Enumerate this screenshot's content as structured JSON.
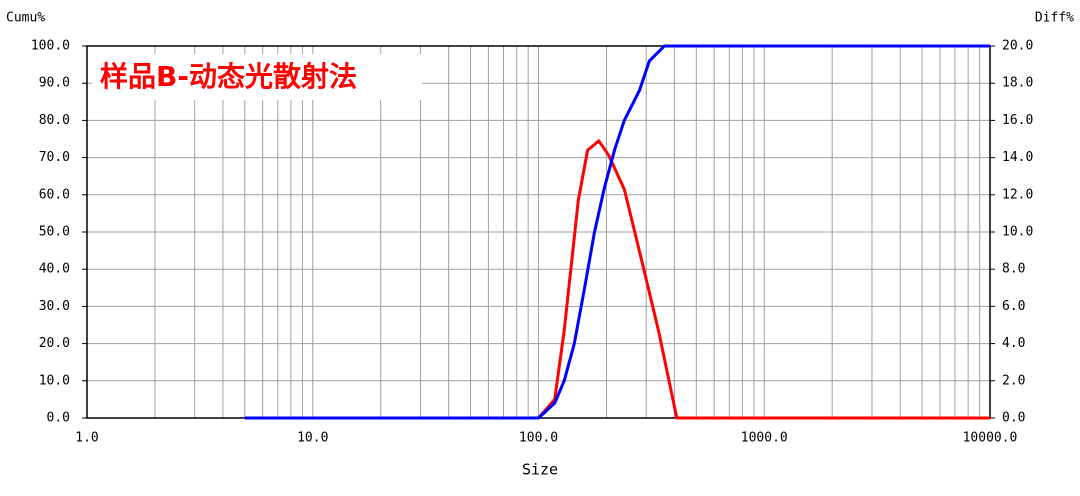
{
  "chart_data": {
    "type": "line",
    "title": "样品B-动态光散射法",
    "ylabel": "Cumu%",
    "y2label": "Diff%",
    "xlabel": "Size",
    "xscale": "log",
    "grid": true,
    "xlim": [
      1,
      10000
    ],
    "xticks": [
      {
        "value": 1,
        "label": "1.0"
      },
      {
        "value": 10,
        "label": "10.0"
      },
      {
        "value": 100,
        "label": "100.0"
      },
      {
        "value": 1000,
        "label": "1000.0"
      },
      {
        "value": 10000,
        "label": "10000.0"
      }
    ],
    "ylim": [
      0,
      100
    ],
    "yticks": [
      {
        "value": 0,
        "label": "0.0"
      },
      {
        "value": 10,
        "label": "10.0"
      },
      {
        "value": 20,
        "label": "20.0"
      },
      {
        "value": 30,
        "label": "30.0"
      },
      {
        "value": 40,
        "label": "40.0"
      },
      {
        "value": 50,
        "label": "50.0"
      },
      {
        "value": 60,
        "label": "60.0"
      },
      {
        "value": 70,
        "label": "70.0"
      },
      {
        "value": 80,
        "label": "80.0"
      },
      {
        "value": 90,
        "label": "90.0"
      },
      {
        "value": 100,
        "label": "100.0"
      }
    ],
    "y2lim": [
      0,
      20
    ],
    "y2ticks": [
      {
        "value": 0,
        "label": "0.0"
      },
      {
        "value": 2,
        "label": "2.0"
      },
      {
        "value": 4,
        "label": "4.0"
      },
      {
        "value": 6,
        "label": "6.0"
      },
      {
        "value": 8,
        "label": "8.0"
      },
      {
        "value": 10,
        "label": "10.0"
      },
      {
        "value": 12,
        "label": "12.0"
      },
      {
        "value": 14,
        "label": "14.0"
      },
      {
        "value": 16,
        "label": "16.0"
      },
      {
        "value": 18,
        "label": "18.0"
      },
      {
        "value": 20,
        "label": "20.0"
      }
    ],
    "series": [
      {
        "color": "#0000ff",
        "axis": "y",
        "x": [
          5,
          100,
          118,
          130,
          144,
          160,
          177,
          196,
          217,
          240,
          280,
          310,
          361,
          10000
        ],
        "values": [
          0,
          0,
          4,
          10,
          20,
          35,
          50,
          62,
          72,
          80,
          88,
          96,
          100,
          100
        ]
      },
      {
        "color": "#ff0000",
        "axis": "y2",
        "x": [
          5,
          100,
          118,
          130,
          150,
          165,
          185,
          205,
          240,
          290,
          340,
          410,
          10000
        ],
        "values": [
          0,
          0,
          1.0,
          4.7,
          11.7,
          14.4,
          14.9,
          14.1,
          12.3,
          8.2,
          4.7,
          0,
          0
        ]
      }
    ]
  }
}
